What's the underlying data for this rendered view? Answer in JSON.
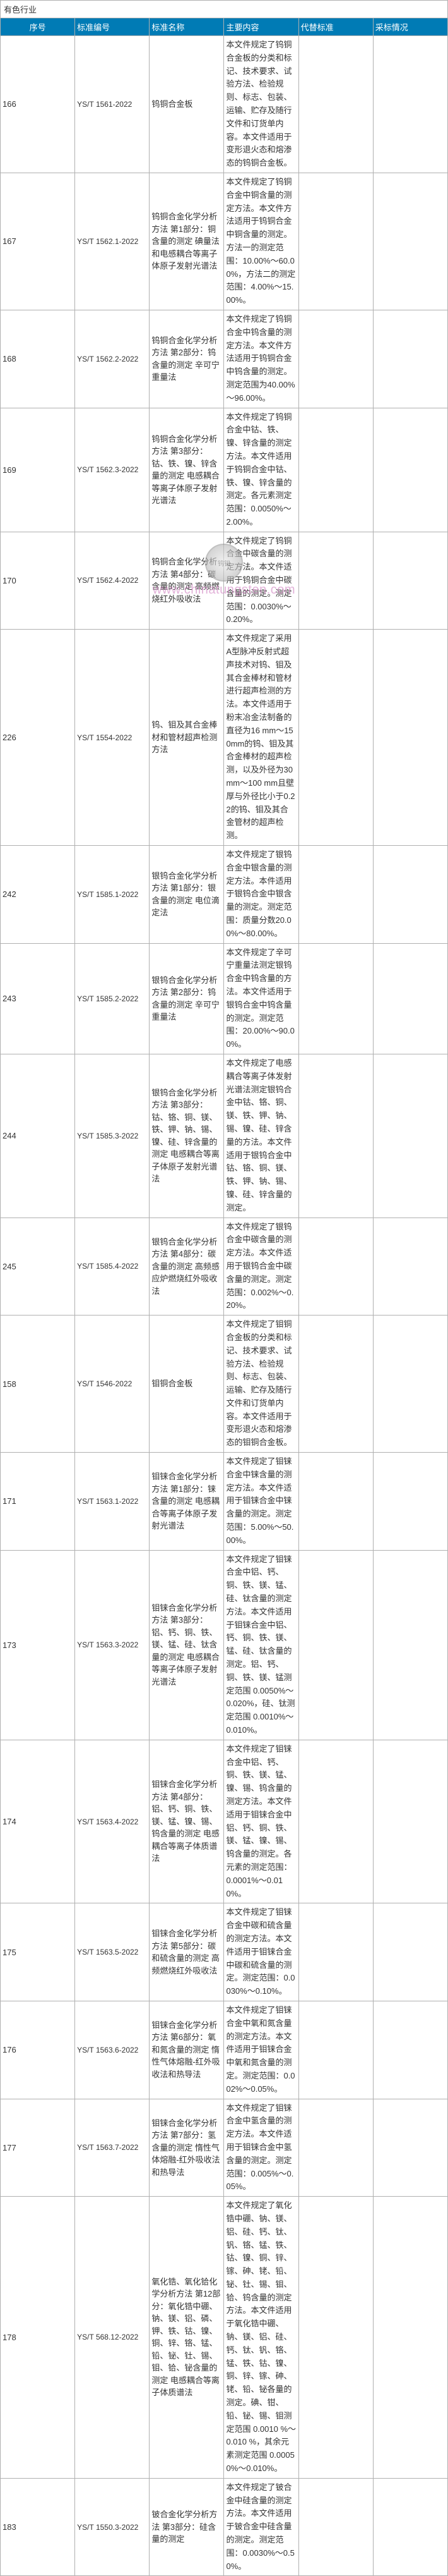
{
  "category_label": "有色行业",
  "headers": {
    "seq": "序号",
    "code": "标准编号",
    "name": "标准名称",
    "content": "主要内容",
    "replace": "代替标准",
    "adopt": "采标情况"
  },
  "watermark": {
    "logo_text": "钨钼",
    "url": "www.chinatungsten.com"
  },
  "rows": [
    {
      "seq": "166",
      "code": "YS/T 1561-2022",
      "name": "钨铜合金板",
      "content": "本文件规定了钨铜合金板的分类和标记、技术要求、试验方法、检验规则、标志、包装、运输、贮存及随行文件和订货单内容。本文件适用于变形退火态和熔渗态的钨铜合金板。"
    },
    {
      "seq": "167",
      "code": "YS/T 1562.1-2022",
      "name": "钨铜合金化学分析方法 第1部分：铜含量的测定 碘量法和电感耦合等离子体原子发射光谱法",
      "content": "本文件规定了钨铜合金中铜含量的测定方法。本文件方法适用于钨铜合金中铜含量的测定。方法一的测定范围：10.00%～60.00%，方法二的测定范围：4.00%～15.00%。"
    },
    {
      "seq": "168",
      "code": "YS/T 1562.2-2022",
      "name": "钨铜合金化学分析方法 第2部分：钨含量的测定 辛可宁重量法",
      "content": "本文件规定了钨铜合金中钨含量的测定方法。本文件方法适用于钨铜合金中钨含量的测定。测定范围为40.00%～96.00%。"
    },
    {
      "seq": "169",
      "code": "YS/T 1562.3-2022",
      "name": "钨铜合金化学分析方法 第3部分：钴、铁、镍、锌含量的测定 电感耦合等离子体原子发射光谱法",
      "content": "本文件规定了钨铜合金中钴、铁、镍、锌含量的测定方法。本文件适用于钨铜合金中钴、铁、镍、锌含量的测定。各元素测定范围：0.0050%～2.00%。"
    },
    {
      "seq": "170",
      "code": "YS/T 1562.4-2022",
      "name": "钨铜合金化学分析方法 第4部分：碳含量的测定 高频燃烧红外吸收法",
      "content": "本文件规定了钨铜合金中碳含量的测定方法。本文件适用于钨铜合金中碳含量的测定。测定范围：0.0030%～0.20%。"
    },
    {
      "seq": "226",
      "code": "YS/T 1554-2022",
      "name": "钨、钼及其合金棒材和管材超声检测方法",
      "content": "本文件规定了采用A型脉冲反射式超声技术对钨、钼及其合金棒材和管材进行超声检测的方法。本文件适用于粉末冶金法制备的直径为16 mm～150mm的钨、钼及其合金棒材的超声检测，以及外径为30 mm～100 mm且壁厚与外径比小于0.22的钨、钼及其合金管材的超声检测。"
    },
    {
      "seq": "242",
      "code": "YS/T 1585.1-2022",
      "name": "银钨合金化学分析方法 第1部分：银含量的测定 电位滴定法",
      "content": "本文件规定了银钨合金中银含量的测定方法。本件适用于银钨合金中银含量的测定。测定范围：质量分数20.00%～80.00%。"
    },
    {
      "seq": "243",
      "code": "YS/T 1585.2-2022",
      "name": "银钨合金化学分析方法 第2部分：钨含量的测定 辛可宁重量法",
      "content": "本文件规定了辛可宁重量法测定银钨合金中钨含量的方法。本文件适用于银钨合金中钨含量的测定。测定范围：20.00%～90.00%。"
    },
    {
      "seq": "244",
      "code": "YS/T 1585.3-2022",
      "name": "银钨合金化学分析方法 第3部分：钴、铬、铜、镁、铁、钾、钠、锡、镍、硅、锌含量的测定 电感耦合等离子体原子发射光谱法",
      "content": "本文件规定了电感耦合等离子体发射光谱法测定银钨合金中钴、铬、铜、镁、铁、钾、钠、锡、镍、硅、锌含量的方法。本文件适用于银钨合金中钴、铬、铜、镁、铁、钾、钠、锡、镍、硅、锌含量的测定。"
    },
    {
      "seq": "245",
      "code": "YS/T 1585.4-2022",
      "name": "银钨合金化学分析方法 第4部分：碳含量的测定 高频感应炉燃烧红外吸收法",
      "content": "本文件规定了银钨合金中碳含量的测定方法。本文件适用于银钨合金中碳含量的测定。测定范围：0.002%～0.20%。"
    },
    {
      "seq": "158",
      "code": "YS/T 1546-2022",
      "name": "钼铜合金板",
      "content": "本文件规定了钼铜合金板的分类和标记、技术要求、试验方法、检验规则、标志、包装、运输、贮存及随行文件和订货单内容。本文件适用于变形退火态和熔渗态的钼铜合金板。"
    },
    {
      "seq": "171",
      "code": "YS/T 1563.1-2022",
      "name": "钼铼合金化学分析方法 第1部分：铼含量的测定 电感耦合等离子体原子发射光谱法",
      "content": "本文件规定了钼铼合金中铼含量的测定方法。本文件适用于钼铼合金中铼含量的测定。测定范围：5.00%～50.00%。"
    },
    {
      "seq": "173",
      "code": "YS/T 1563.3-2022",
      "name": "钼铼合金化学分析方法 第3部分：铝、钙、铜、铁、镁、锰、硅、钛含量的测定 电感耦合等离子体原子发射光谱法",
      "content": "本文件规定了钼铼合金中铝、钙、铜、铁、镁、锰、硅、钛含量的测定方法。本文件适用于钼铼合金中铝、钙、铜、铁、镁、锰、硅、钛含量的测定。铝、钙、铜、铁、镁、锰测定范围 0.0050%～0.020%，硅、钛测定范围 0.0010%～0.010%。"
    },
    {
      "seq": "174",
      "code": "YS/T 1563.4-2022",
      "name": "钼铼合金化学分析方法 第4部分：铝、钙、铜、铁、镁、锰、镍、锡、钨含量的测定 电感耦合等离子体质谱法",
      "content": "本文件规定了钼铼合金中铝、钙、铜、铁、镁、锰、镍、锡、钨含量的测定方法。本文件适用于钼铼合金中铝、钙、铜、铁、镁、锰、镍、锡、钨含量的测定。各元素的测定范围：0.0001%～0.010%。"
    },
    {
      "seq": "175",
      "code": "YS/T 1563.5-2022",
      "name": "钼铼合金化学分析方法 第5部分：碳和硫含量的测定 高频燃烧红外吸收法",
      "content": "本文件规定了钼铼合金中碳和硫含量的测定方法。本文件适用于钼铼合金中碳和硫含量的测定。测定范围：0.0030%～0.10%。"
    },
    {
      "seq": "176",
      "code": "YS/T 1563.6-2022",
      "name": "钼铼合金化学分析方法 第6部分：氧和氮含量的测定 惰性气体熔融-红外吸收法和热导法",
      "content": "本文件规定了钼铼合金中氧和氮含量的测定方法。本文件适用于钼铼合金中氧和氮含量的测定。测定范围：0.002%～0.05%。"
    },
    {
      "seq": "177",
      "code": "YS/T 1563.7-2022",
      "name": "钼铼合金化学分析方法 第7部分：氢含量的测定 惰性气体熔融-红外吸收法和热导法",
      "content": "本文件规定了钼铼合金中氢含量的测定方法。本文件适用于钼铼合金中氢含量的测定。测定范围：0.005%～0.05%。"
    },
    {
      "seq": "178",
      "code": "YS/T 568.12-2022",
      "name": "氧化锆、氧化铪化学分析方法 第12部分：氧化锆中硼、钠、镁、铝、磷、钾、铁、钴、镍、铜、锌、铬、锰、铅、铋、钍、锡、钼、铪、铋含量的测定 电感耦合等离子体质谱法",
      "content": "本文件规定了氧化锆中硼、钠、镁、铝、硅、钙、钛、钒、铬、锰、铁、钴、镍、铜、锌、镓、砷、铑、铅、铋、钍、锡、钼、铪、钨含量的测定方法。本文件适用于氧化锆中硼、钠、镁、铝、硅、钙、钛、钒、铬、锰、铁、钴、镍、铜、锌、镓、砷、铑、铅、铋各量的测定。碘、钳、铅、铋、锡、钼测定范围 0.0010 %～0.010 %，其余元素测定范围 0.00050%～0.010%。"
    },
    {
      "seq": "183",
      "code": "YS/T 1550.3-2022",
      "name": "铍合金化学分析方法 第3部分：硅含量的测定",
      "content": "本文件规定了铍合金中硅含量的测定方法。本文件适用于铍合金中硅含量的测定。测定范围：0.0030%～0.50%。"
    }
  ],
  "colors": {
    "header_bg": "#007bb5",
    "header_text": "#ffffff",
    "border": "#b0b0b0",
    "text": "#333333",
    "watermark_url": "#d080c0"
  }
}
